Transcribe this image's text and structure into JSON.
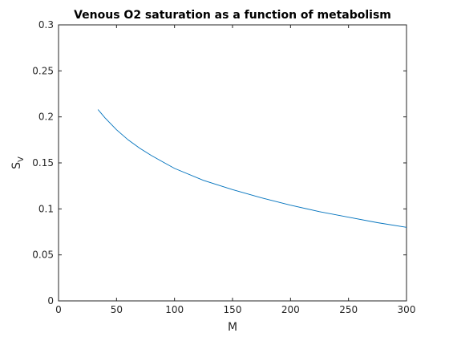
{
  "chart_data": {
    "type": "line",
    "title": "Venous O2 saturation as a function of metabolism",
    "xlabel": "M",
    "ylabel_main": "S",
    "ylabel_sub": "V",
    "xlim": [
      0,
      300
    ],
    "ylim": [
      0,
      0.3
    ],
    "xticks": [
      0,
      50,
      100,
      150,
      200,
      250,
      300
    ],
    "yticks": [
      0,
      0.05,
      0.1,
      0.15,
      0.2,
      0.25,
      0.3
    ],
    "ytick_labels": [
      "0",
      "0.05",
      "0.1",
      "0.15",
      "0.2",
      "0.25",
      "0.3"
    ],
    "grid": false,
    "series": [
      {
        "color": "#0072BD",
        "x": [
          34,
          40,
          50,
          60,
          70,
          80,
          90,
          100,
          125,
          150,
          175,
          200,
          225,
          250,
          275,
          300
        ],
        "y": [
          0.208,
          0.199,
          0.186,
          0.175,
          0.166,
          0.158,
          0.151,
          0.144,
          0.131,
          0.121,
          0.112,
          0.104,
          0.097,
          0.091,
          0.085,
          0.08
        ]
      }
    ]
  }
}
